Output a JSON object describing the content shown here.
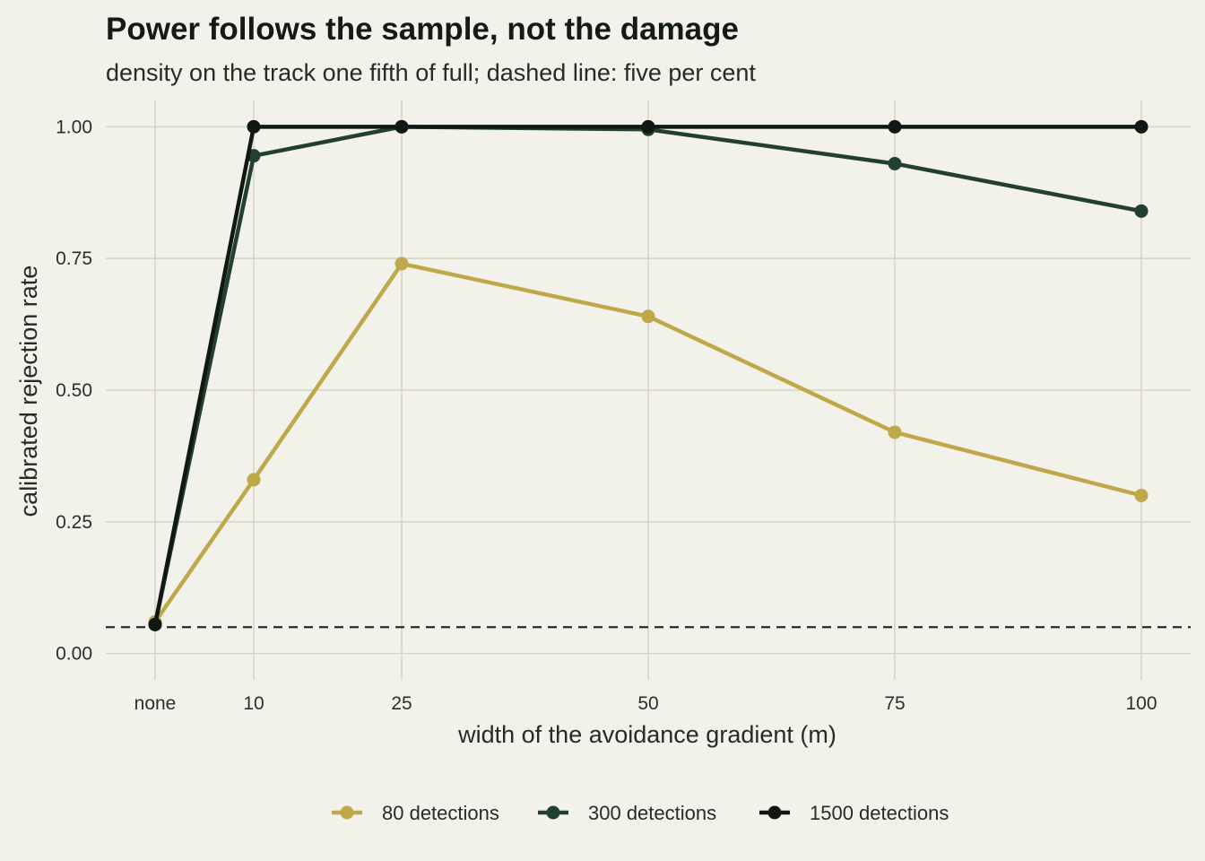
{
  "title": "Power follows the sample, not the damage",
  "subtitle": "density on the track one fifth of full; dashed line: five per cent",
  "chart_data": {
    "type": "line",
    "title": "Power follows the sample, not the damage",
    "subtitle": "density on the track one fifth of full; dashed line: five per cent",
    "xlabel": "width of the avoidance gradient (m)",
    "ylabel": "calibrated rejection rate",
    "x_categories": [
      "none",
      "10",
      "25",
      "50",
      "75",
      "100"
    ],
    "x_values": [
      0,
      10,
      25,
      50,
      75,
      100
    ],
    "xlim": [
      -5,
      105
    ],
    "ylim": [
      -0.05,
      1.05
    ],
    "y_ticks": [
      0,
      0.25,
      0.5,
      0.75,
      1.0
    ],
    "y_tick_labels": [
      "0.00",
      "0.25",
      "0.50",
      "0.75",
      "1.00"
    ],
    "reference_line": {
      "y": 0.05,
      "style": "dashed"
    },
    "grid": true,
    "legend_position": "bottom",
    "series": [
      {
        "name": "80 detections",
        "color": "#bfa84a",
        "values": [
          0.06,
          0.33,
          0.74,
          0.64,
          0.42,
          0.3
        ]
      },
      {
        "name": "300 detections",
        "color": "#22402f",
        "values": [
          0.055,
          0.945,
          1.0,
          0.995,
          0.93,
          0.84
        ]
      },
      {
        "name": "1500 detections",
        "color": "#111813",
        "values": [
          0.055,
          1.0,
          1.0,
          1.0,
          1.0,
          1.0
        ]
      }
    ]
  }
}
